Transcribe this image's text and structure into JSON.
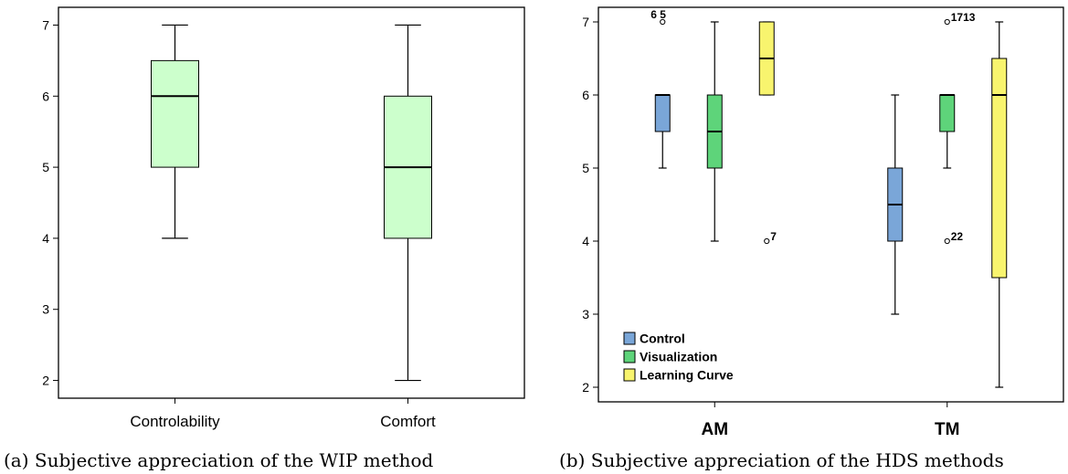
{
  "chart_data": [
    {
      "type": "box",
      "caption": "(a) Subjective appreciation of the WIP method",
      "ylim": [
        1.75,
        7.25
      ],
      "yticks": [
        2,
        3,
        4,
        5,
        6,
        7
      ],
      "categories": [
        "Controlability",
        "Comfort"
      ],
      "fill_color": "#ccffcc",
      "boxes": [
        {
          "category": "Controlability",
          "min": 4,
          "q1": 5,
          "median": 6,
          "q3": 6.5,
          "max": 7,
          "outliers": []
        },
        {
          "category": "Comfort",
          "min": 2,
          "q1": 4,
          "median": 5,
          "q3": 6,
          "max": 7,
          "outliers": []
        }
      ]
    },
    {
      "type": "box",
      "caption": "(b) Subjective appreciation of the HDS methods",
      "ylim": [
        1.8,
        7.2
      ],
      "yticks": [
        2,
        3,
        4,
        5,
        6,
        7
      ],
      "categories": [
        "AM",
        "TM"
      ],
      "legend": {
        "position": "bottom-left",
        "items": [
          {
            "name": "Control",
            "color": "#7aa6d8"
          },
          {
            "name": "Visualization",
            "color": "#5ed47a"
          },
          {
            "name": "Learning Curve",
            "color": "#f8f46e"
          }
        ]
      },
      "series": [
        {
          "name": "Control",
          "color": "#7aa6d8",
          "boxes": [
            {
              "category": "AM",
              "min": 5,
              "q1": 5.5,
              "median": 6,
              "q3": 6,
              "max": 6,
              "outliers": [
                {
                  "value": 7,
                  "label": "6 5"
                }
              ]
            },
            {
              "category": "TM",
              "min": 3,
              "q1": 4,
              "median": 4.5,
              "q3": 5,
              "max": 6,
              "outliers": []
            }
          ]
        },
        {
          "name": "Visualization",
          "color": "#5ed47a",
          "boxes": [
            {
              "category": "AM",
              "min": 4,
              "q1": 5,
              "median": 5.5,
              "q3": 6,
              "max": 7,
              "outliers": []
            },
            {
              "category": "TM",
              "min": 5,
              "q1": 5.5,
              "median": 6,
              "q3": 6,
              "max": 6,
              "outliers": [
                {
                  "value": 7,
                  "label": "1713"
                },
                {
                  "value": 4,
                  "label": "22"
                }
              ]
            }
          ]
        },
        {
          "name": "Learning Curve",
          "color": "#f8f46e",
          "boxes": [
            {
              "category": "AM",
              "min": 6,
              "q1": 6,
              "median": 6.5,
              "q3": 7,
              "max": 7,
              "outliers": [
                {
                  "value": 4,
                  "label": "7"
                }
              ]
            },
            {
              "category": "TM",
              "min": 2,
              "q1": 3.5,
              "median": 6,
              "q3": 6.5,
              "max": 7,
              "outliers": []
            }
          ]
        }
      ]
    }
  ]
}
